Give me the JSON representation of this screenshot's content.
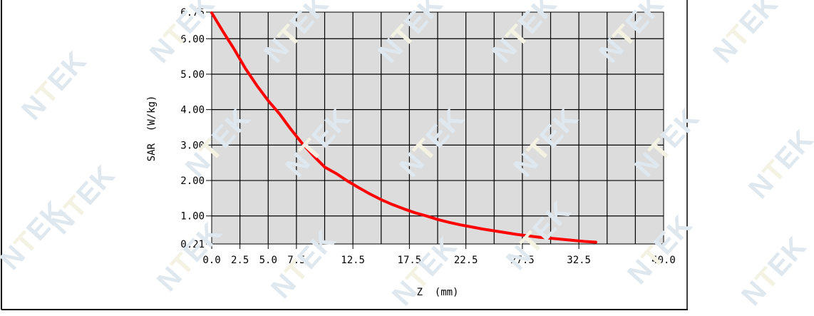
{
  "watermark": {
    "text": "NTEK",
    "left": "N",
    "accent": "T",
    "right": "EK",
    "colors": {
      "main": "#dfe8ef",
      "accent": "#f3f2e3"
    }
  },
  "chart_data": {
    "type": "line",
    "title": "",
    "xlabel": "Z  (mm)",
    "ylabel": "SAR  (W/kg)",
    "xlim": [
      0,
      40
    ],
    "ylim": [
      0.21,
      6.75
    ],
    "xticks": [
      "0.0",
      "2.5",
      "5.0",
      "7.5",
      "12.5",
      "17.5",
      "22.5",
      "27.5",
      "32.5",
      "40.0"
    ],
    "xtick_values": [
      0,
      2.5,
      5,
      7.5,
      12.5,
      17.5,
      22.5,
      27.5,
      32.5,
      40
    ],
    "yticks": [
      "0.21",
      "1.00",
      "2.00",
      "3.00",
      "4.00",
      "5.00",
      "6.00",
      "6.75"
    ],
    "ytick_values": [
      0.21,
      1,
      2,
      3,
      4,
      5,
      6,
      6.75
    ],
    "grid": true,
    "grid_x_step": 2.5,
    "background_color": "#dcdcdc",
    "series": [
      {
        "color": "#ff0000",
        "x": [
          0,
          1,
          2,
          3,
          4,
          5,
          6,
          7,
          8,
          9,
          10,
          11,
          12,
          13,
          14,
          15,
          16,
          17,
          18,
          19,
          20,
          21,
          22,
          23,
          24,
          25,
          26,
          27,
          28,
          29,
          30,
          31,
          32,
          33,
          34
        ],
        "y": [
          6.73,
          6.2,
          5.7,
          5.15,
          4.68,
          4.25,
          3.88,
          3.45,
          3.05,
          2.7,
          2.38,
          2.2,
          1.99,
          1.8,
          1.62,
          1.46,
          1.32,
          1.2,
          1.09,
          1.0,
          0.9,
          0.82,
          0.75,
          0.69,
          0.63,
          0.58,
          0.53,
          0.48,
          0.44,
          0.4,
          0.37,
          0.34,
          0.31,
          0.28,
          0.26
        ]
      }
    ]
  }
}
